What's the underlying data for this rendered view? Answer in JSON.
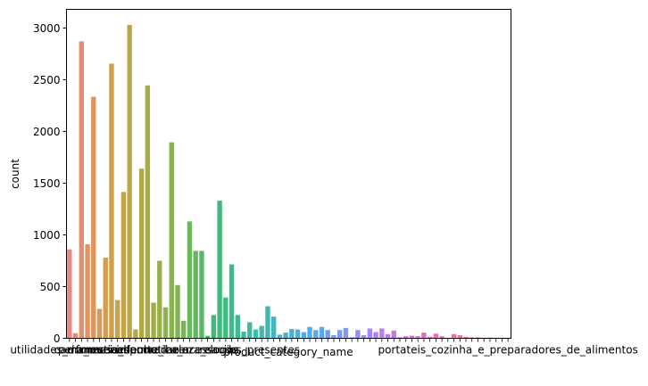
{
  "chart_data": {
    "type": "bar",
    "xlabel": "product_category_name",
    "ylabel": "count",
    "ylim": [
      0,
      3180
    ],
    "yticks": [
      0,
      500,
      1000,
      1500,
      2000,
      2500,
      3000
    ],
    "grid": false,
    "values": [
      860,
      50,
      2870,
      910,
      2335,
      285,
      780,
      2655,
      370,
      1415,
      3030,
      85,
      1640,
      2445,
      345,
      750,
      300,
      1895,
      515,
      170,
      1130,
      845,
      845,
      25,
      225,
      1330,
      395,
      715,
      225,
      65,
      155,
      85,
      120,
      310,
      210,
      35,
      55,
      90,
      85,
      60,
      110,
      80,
      110,
      80,
      30,
      80,
      100,
      10,
      80,
      30,
      95,
      60,
      95,
      40,
      75,
      10,
      20,
      25,
      20,
      55,
      15,
      45,
      20,
      5,
      40,
      30,
      15,
      8,
      10,
      5,
      8,
      5,
      5,
      3
    ],
    "colors": [
      "#e8877e",
      "#e58b74",
      "#e38f6b",
      "#e19263",
      "#dd955a",
      "#d99955",
      "#d49d50",
      "#cf9f4c",
      "#c9a24a",
      "#c3a449",
      "#bca648",
      "#b6a847",
      "#afaa47",
      "#a8ac47",
      "#a1ae48",
      "#99b04a",
      "#91b14c",
      "#89b34f",
      "#80b452",
      "#76b556",
      "#6cb75b",
      "#61b860",
      "#56b966",
      "#4bba6c",
      "#40ba73",
      "#3ebb7a",
      "#3dbb82",
      "#3cbb8a",
      "#3cbb91",
      "#3cbb98",
      "#3dbaa0",
      "#3ebaa7",
      "#40b9ae",
      "#41b8b5",
      "#43b7bc",
      "#45b5c3",
      "#48b4ca",
      "#4ab2d1",
      "#4db0d8",
      "#50ade0",
      "#53abe7",
      "#5aa8ec",
      "#62a5ef",
      "#6aa2f1",
      "#729ef3",
      "#7b9af4",
      "#8496f5",
      "#8d92f5",
      "#968ef5",
      "#9f8af4",
      "#a786f2",
      "#af82f0",
      "#b77eed",
      "#bf7aea",
      "#c677e6",
      "#cd74e1",
      "#d371dc",
      "#d96fd6",
      "#de6ed0",
      "#e26dc9",
      "#e66dc2",
      "#e96dba",
      "#eb6eb2",
      "#ec70aa",
      "#ed72a2",
      "#ed749a",
      "#ec7792",
      "#eb7a8a",
      "#e97d83",
      "#e8807d",
      "#e7837a",
      "#e68678",
      "#e58977",
      "#e48c76"
    ],
    "tick_labels_visible": [
      "utilidades_domesticas",
      "perfumaria",
      "cama_mesa_banho",
      "moveis_decoracao",
      "esporte_lazer",
      "informatica_acessorios",
      "beleza_saude",
      "relogios_presentes",
      "portateis_cozinha_e_preparadores_de_alimentos"
    ]
  }
}
